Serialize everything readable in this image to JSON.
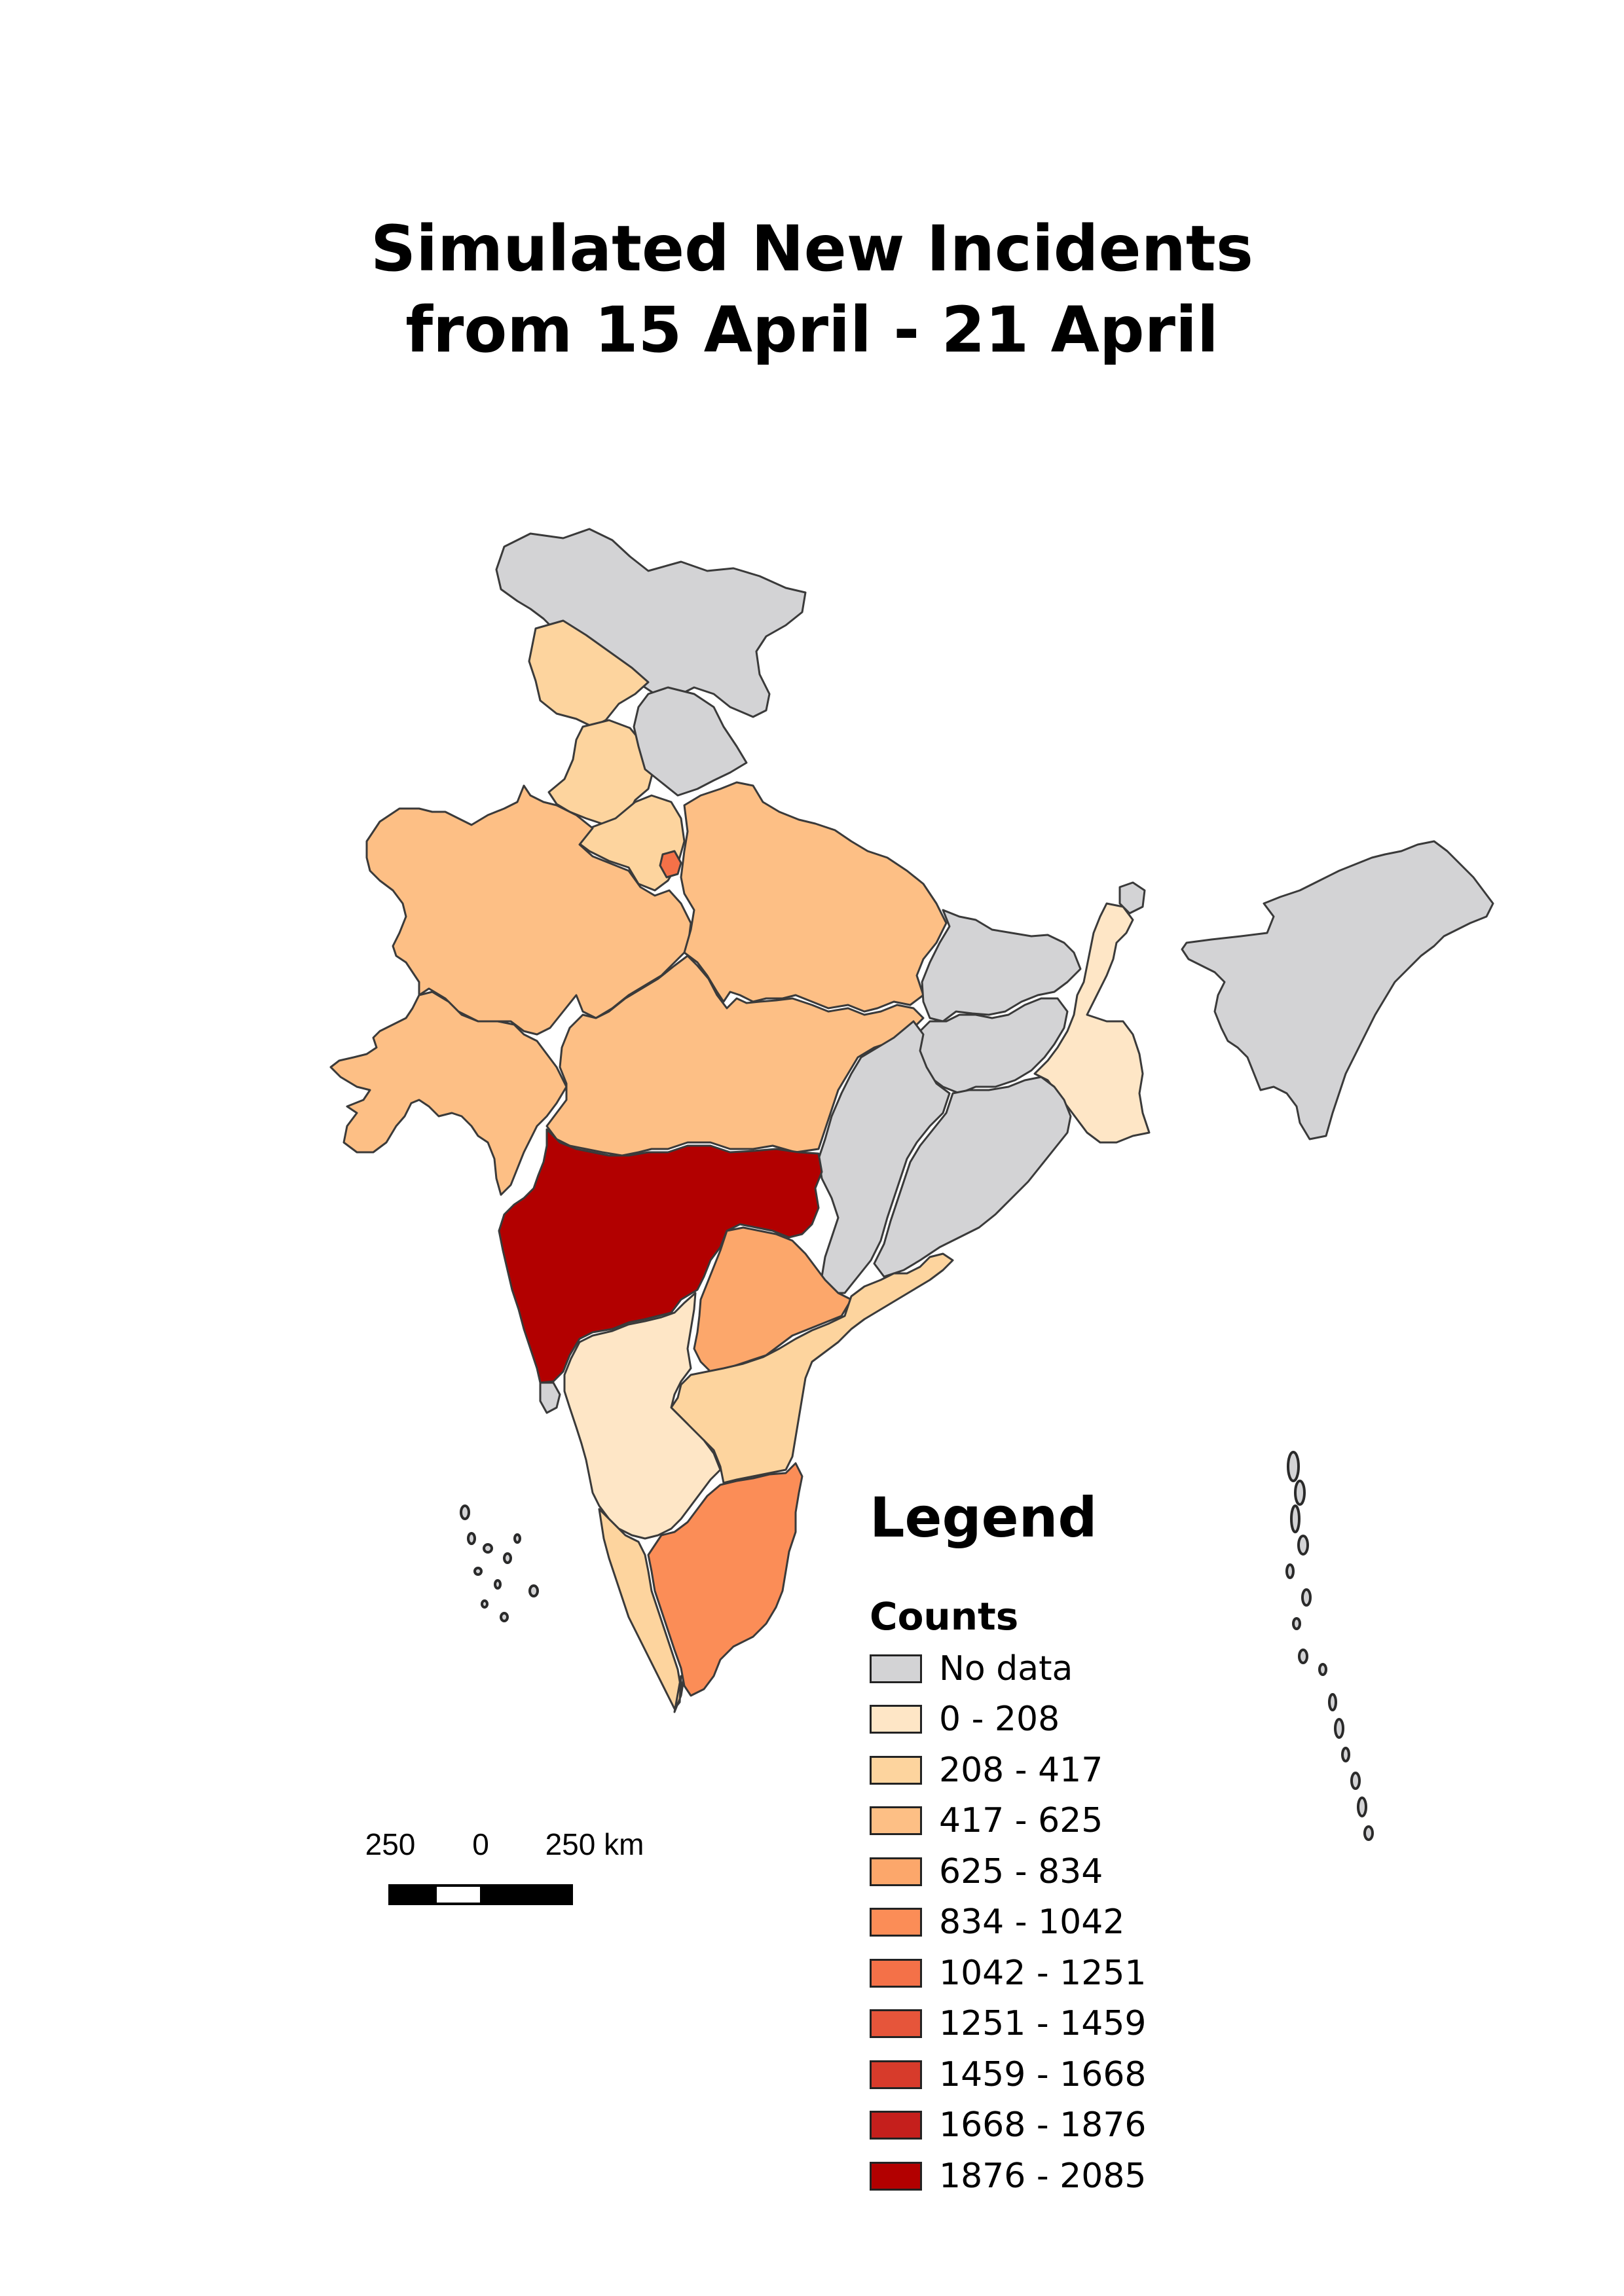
{
  "title": {
    "line1": "Simulated New Incidents",
    "line2": "from 15 April - 21 April"
  },
  "legend": {
    "title": "Legend",
    "subtitle": "Counts",
    "entries": [
      {
        "label": "No data",
        "color": "#d3d3d5"
      },
      {
        "label": "0 - 208",
        "color": "#fee6c6"
      },
      {
        "label": "208 - 417",
        "color": "#fdd49e"
      },
      {
        "label": "417 - 625",
        "color": "#fdbf85"
      },
      {
        "label": "625 - 834",
        "color": "#fca76b"
      },
      {
        "label": "834 - 1042",
        "color": "#fb8d57"
      },
      {
        "label": "1042 - 1251",
        "color": "#f47148"
      },
      {
        "label": "1251 - 1459",
        "color": "#e6553a"
      },
      {
        "label": "1459 - 1668",
        "color": "#d73b2b"
      },
      {
        "label": "1668 - 1876",
        "color": "#c51f1c"
      },
      {
        "label": "1876 - 2085",
        "color": "#b20000"
      }
    ]
  },
  "scalebar": {
    "labels": [
      "250",
      "0",
      "250 km"
    ]
  },
  "map": {
    "outline_color": "#3a3a3a",
    "regions": [
      {
        "id": "jammu-kashmir-ladakh",
        "class": "No data"
      },
      {
        "id": "himachal-pradesh",
        "class": "208 - 417"
      },
      {
        "id": "punjab",
        "class": "208 - 417"
      },
      {
        "id": "uttarakhand",
        "class": "No data"
      },
      {
        "id": "haryana",
        "class": "208 - 417"
      },
      {
        "id": "delhi",
        "class": "1042 - 1251"
      },
      {
        "id": "rajasthan",
        "class": "417 - 625"
      },
      {
        "id": "uttar-pradesh",
        "class": "417 - 625"
      },
      {
        "id": "gujarat",
        "class": "417 - 625"
      },
      {
        "id": "madhya-pradesh",
        "class": "417 - 625"
      },
      {
        "id": "bihar",
        "class": "No data"
      },
      {
        "id": "jharkhand",
        "class": "No data"
      },
      {
        "id": "west-bengal",
        "class": "0 - 208"
      },
      {
        "id": "chhattisgarh",
        "class": "No data"
      },
      {
        "id": "odisha",
        "class": "No data"
      },
      {
        "id": "maharashtra",
        "class": "1876 - 2085"
      },
      {
        "id": "telangana",
        "class": "625 - 834"
      },
      {
        "id": "andhra-pradesh",
        "class": "208 - 417"
      },
      {
        "id": "karnataka",
        "class": "0 - 208"
      },
      {
        "id": "goa",
        "class": "No data"
      },
      {
        "id": "kerala",
        "class": "208 - 417"
      },
      {
        "id": "tamil-nadu",
        "class": "834 - 1042"
      },
      {
        "id": "sikkim",
        "class": "No data"
      },
      {
        "id": "northeast-states",
        "class": "No data"
      }
    ]
  }
}
